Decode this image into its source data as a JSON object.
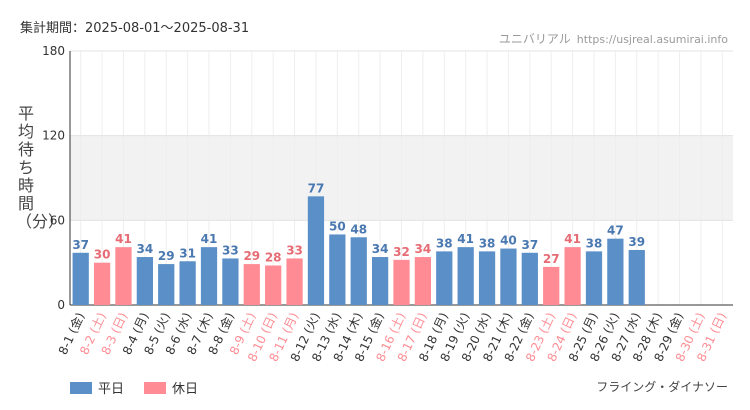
{
  "header": {
    "period": "集計期間：2025-08-01～2025-08-31",
    "site_name": "ユニバリアル",
    "site_url": "https://usjreal.asumirai.info"
  },
  "footer": {
    "attraction": "フライング・ダイナソー"
  },
  "legend": {
    "weekday_label": "平日",
    "holiday_label": "休日"
  },
  "colors": {
    "weekday": "#5b8fc7",
    "holiday": "#ff8c94",
    "weekday_text": "#4a78b0",
    "holiday_text": "#e76b74",
    "band": "#f2f2f2",
    "grid": "#e3e3e3"
  },
  "chart_data": {
    "type": "bar",
    "ylabel": "平均待ち時間（分）",
    "ylim": [
      0,
      180
    ],
    "yticks": [
      0,
      60,
      120,
      180
    ],
    "grid": true,
    "legend_position": "bottom-left",
    "categories": [
      "8-1 (金)",
      "8-2 (土)",
      "8-3 (日)",
      "8-4 (月)",
      "8-5 (火)",
      "8-6 (水)",
      "8-7 (木)",
      "8-8 (金)",
      "8-9 (土)",
      "8-10 (日)",
      "8-11 (月)",
      "8-12 (火)",
      "8-13 (水)",
      "8-14 (木)",
      "8-15 (金)",
      "8-16 (土)",
      "8-17 (日)",
      "8-18 (月)",
      "8-19 (火)",
      "8-20 (水)",
      "8-21 (木)",
      "8-22 (金)",
      "8-23 (土)",
      "8-24 (日)",
      "8-25 (月)",
      "8-26 (火)",
      "8-27 (水)",
      "8-28 (木)",
      "8-29 (金)",
      "8-30 (土)",
      "8-31 (日)"
    ],
    "values": [
      37,
      30,
      41,
      34,
      29,
      31,
      41,
      33,
      29,
      28,
      33,
      77,
      50,
      48,
      34,
      32,
      34,
      38,
      41,
      38,
      40,
      37,
      27,
      41,
      38,
      47,
      39,
      null,
      null,
      null,
      null
    ],
    "day_type": [
      "weekday",
      "holiday",
      "holiday",
      "weekday",
      "weekday",
      "weekday",
      "weekday",
      "weekday",
      "holiday",
      "holiday",
      "holiday",
      "weekday",
      "weekday",
      "weekday",
      "weekday",
      "holiday",
      "holiday",
      "weekday",
      "weekday",
      "weekday",
      "weekday",
      "weekday",
      "holiday",
      "holiday",
      "weekday",
      "weekday",
      "weekday",
      "weekday",
      "weekday",
      "holiday",
      "holiday"
    ]
  }
}
